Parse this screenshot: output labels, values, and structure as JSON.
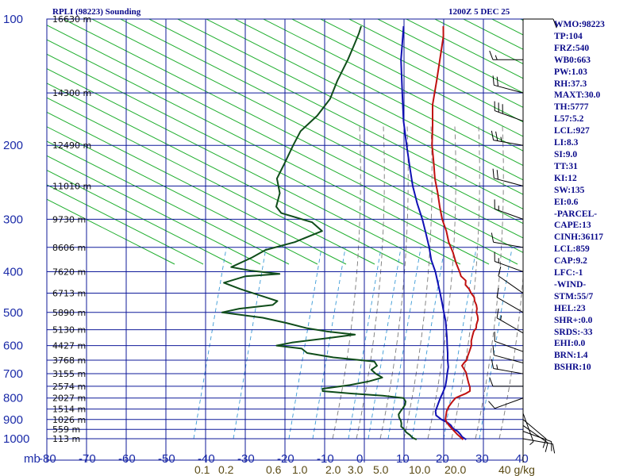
{
  "header": {
    "title": "RPLI (98223) Sounding",
    "time": "1200Z  5 DEC 25"
  },
  "indices": [
    "WMO:98223",
    "TP:104",
    "FRZ:540",
    "WB0:663",
    "PW:1.03",
    "RH:37.3",
    "MAXT:30.0",
    "TH:5777",
    "L57:5.2",
    "LCL:927",
    "LI:8.3",
    "SI:9.0",
    "TT:31",
    "KI:12",
    "SW:135",
    "EI:0.6",
    "-PARCEL-",
    "CAPE:13",
    "CINH:36117",
    "LCL:859",
    "CAP:9.2",
    "LFC:-1",
    "-WIND-",
    "STM:55/7",
    "HEL:23",
    "SHR+:0.0",
    "SRDS:-33",
    "EHI:0.0",
    "BRN:1.4",
    "BSHR:10"
  ],
  "colors": {
    "grid": "#0f1a9a",
    "dry_adiabat": "#1fae2e",
    "moist_adiabat": "#7a7a7a",
    "mixing_ratio": "#3a9ad6",
    "temperature": "#c01010",
    "dewpoint": "#0f4d1a",
    "parcel": "#1010b4",
    "wind": "#000000"
  },
  "chart_data": {
    "type": "line",
    "title": "RPLI (98223) Sounding",
    "pressure_axis_label": "mb",
    "temperature_axis_label": "",
    "pressure_ticks": [
      "100",
      "200",
      "300",
      "400",
      "500",
      "600",
      "700",
      "800",
      "900",
      "1000"
    ],
    "temperature_ticks": [
      "-80",
      "-70",
      "-60",
      "-50",
      "-40",
      "-30",
      "-20",
      "-10",
      "0",
      "10",
      "20",
      "30",
      "40"
    ],
    "mixing_ratio_labels": [
      "0.1",
      "0.2",
      "0.6",
      "1.0",
      "2.0",
      "3.0",
      "5.0",
      "10.0",
      "20.0",
      "40 g/kg"
    ],
    "height_labels": [
      {
        "p": 100,
        "label": "16630 m"
      },
      {
        "p": 150,
        "label": "14300 m"
      },
      {
        "p": 200,
        "label": "12490 m"
      },
      {
        "p": 250,
        "label": "11010 m"
      },
      {
        "p": 300,
        "label": "9730 m"
      },
      {
        "p": 350,
        "label": "8606 m"
      },
      {
        "p": 400,
        "label": "7620 m"
      },
      {
        "p": 450,
        "label": "6713 m"
      },
      {
        "p": 500,
        "label": "5890 m"
      },
      {
        "p": 550,
        "label": "5130 m"
      },
      {
        "p": 600,
        "label": "4427 m"
      },
      {
        "p": 650,
        "label": "3768 m"
      },
      {
        "p": 700,
        "label": "3155 m"
      },
      {
        "p": 750,
        "label": "2574 m"
      },
      {
        "p": 800,
        "label": "2027 m"
      },
      {
        "p": 850,
        "label": "1514 m"
      },
      {
        "p": 900,
        "label": "1026 m"
      },
      {
        "p": 950,
        "label": "559 m"
      },
      {
        "p": 1000,
        "label": "113 m"
      }
    ],
    "p_range": [
      100,
      1000
    ],
    "t_range_at_surface": [
      -80,
      40
    ],
    "skew": "45-degree skew-T log-p",
    "temperature_profile": [
      [
        1005,
        25.1
      ],
      [
        990,
        23.7
      ],
      [
        975,
        22.2
      ],
      [
        960,
        20.8
      ],
      [
        945,
        19.4
      ],
      [
        930,
        18.0
      ],
      [
        915,
        16.7
      ],
      [
        900,
        15.6
      ],
      [
        880,
        14.7
      ],
      [
        860,
        13.8
      ],
      [
        840,
        13.2
      ],
      [
        820,
        12.9
      ],
      [
        800,
        12.7
      ],
      [
        790,
        13.4
      ],
      [
        780,
        14.2
      ],
      [
        770,
        14.6
      ],
      [
        755,
        13.7
      ],
      [
        735,
        12.1
      ],
      [
        715,
        10.5
      ],
      [
        695,
        8.9
      ],
      [
        680,
        7.3
      ],
      [
        670,
        6.2
      ],
      [
        660,
        6.0
      ],
      [
        650,
        6.0
      ],
      [
        635,
        5.2
      ],
      [
        620,
        4.5
      ],
      [
        600,
        3.5
      ],
      [
        585,
        2.3
      ],
      [
        570,
        1.4
      ],
      [
        555,
        0.5
      ],
      [
        545,
        0.3
      ],
      [
        535,
        -0.5
      ],
      [
        520,
        -1.4
      ],
      [
        510,
        -2.4
      ],
      [
        500,
        -3.6
      ],
      [
        490,
        -4.4
      ],
      [
        480,
        -5.5
      ],
      [
        470,
        -6.9
      ],
      [
        460,
        -8.0
      ],
      [
        450,
        -9.8
      ],
      [
        440,
        -11.3
      ],
      [
        430,
        -13.3
      ],
      [
        420,
        -14.3
      ],
      [
        410,
        -16.6
      ],
      [
        400,
        -18.1
      ],
      [
        380,
        -21.4
      ],
      [
        360,
        -24.6
      ],
      [
        340,
        -28.3
      ],
      [
        320,
        -31.7
      ],
      [
        300,
        -35.7
      ],
      [
        280,
        -39.5
      ],
      [
        260,
        -43.4
      ],
      [
        240,
        -47.8
      ],
      [
        220,
        -52.1
      ],
      [
        200,
        -56.9
      ],
      [
        180,
        -61.6
      ],
      [
        160,
        -67.0
      ],
      [
        140,
        -72.1
      ],
      [
        120,
        -78.1
      ],
      [
        110,
        -81.5
      ],
      [
        104,
        -84.1
      ]
    ],
    "dewpoint_profile": [
      [
        1005,
        13.4
      ],
      [
        995,
        11.9
      ],
      [
        980,
        10.6
      ],
      [
        965,
        8.9
      ],
      [
        950,
        7.7
      ],
      [
        935,
        6.2
      ],
      [
        920,
        5.5
      ],
      [
        905,
        4.6
      ],
      [
        890,
        3.4
      ],
      [
        875,
        2.5
      ],
      [
        860,
        2.2
      ],
      [
        845,
        2.0
      ],
      [
        830,
        1.7
      ],
      [
        815,
        1.0
      ],
      [
        800,
        -0.4
      ],
      [
        790,
        -6.2
      ],
      [
        780,
        -15.1
      ],
      [
        770,
        -22.5
      ],
      [
        760,
        -23.1
      ],
      [
        745,
        -17.2
      ],
      [
        730,
        -13.3
      ],
      [
        715,
        -10.9
      ],
      [
        700,
        -13.5
      ],
      [
        685,
        -15.6
      ],
      [
        670,
        -15.2
      ],
      [
        655,
        -16.9
      ],
      [
        640,
        -28.3
      ],
      [
        625,
        -36.0
      ],
      [
        610,
        -38.5
      ],
      [
        600,
        -45.6
      ],
      [
        590,
        -42.5
      ],
      [
        575,
        -34.1
      ],
      [
        565,
        -28.6
      ],
      [
        555,
        -36.6
      ],
      [
        545,
        -42.4
      ],
      [
        530,
        -48.8
      ],
      [
        515,
        -56.1
      ],
      [
        500,
        -67.7
      ],
      [
        490,
        -64.3
      ],
      [
        480,
        -56.8
      ],
      [
        470,
        -56.6
      ],
      [
        460,
        -60.6
      ],
      [
        440,
        -68.9
      ],
      [
        425,
        -74.7
      ],
      [
        410,
        -70.9
      ],
      [
        405,
        -62.9
      ],
      [
        398,
        -70.8
      ],
      [
        390,
        -76.8
      ],
      [
        370,
        -74.0
      ],
      [
        355,
        -72.5
      ],
      [
        340,
        -67.1
      ],
      [
        320,
        -63.0
      ],
      [
        305,
        -67.7
      ],
      [
        290,
        -77.8
      ],
      [
        280,
        -80.7
      ],
      [
        260,
        -83.2
      ],
      [
        240,
        -87.6
      ],
      [
        220,
        -89.6
      ],
      [
        200,
        -91.9
      ],
      [
        185,
        -93.6
      ],
      [
        170,
        -93.3
      ],
      [
        155,
        -94.3
      ],
      [
        140,
        -97.1
      ],
      [
        125,
        -99.7
      ],
      [
        115,
        -101.9
      ],
      [
        108,
        -103.6
      ],
      [
        104,
        -104.8
      ]
    ],
    "parcel_profile": [
      [
        1005,
        25.9
      ],
      [
        990,
        24.2
      ],
      [
        975,
        23.0
      ],
      [
        960,
        21.6
      ],
      [
        945,
        19.7
      ],
      [
        930,
        18.5
      ],
      [
        915,
        16.9
      ],
      [
        900,
        14.6
      ],
      [
        880,
        12.2
      ],
      [
        860,
        11.0
      ],
      [
        840,
        10.3
      ],
      [
        820,
        9.6
      ],
      [
        800,
        8.9
      ],
      [
        775,
        8.1
      ],
      [
        750,
        7.2
      ],
      [
        725,
        5.9
      ],
      [
        700,
        4.5
      ],
      [
        675,
        3.1
      ],
      [
        650,
        1.2
      ],
      [
        625,
        -0.6
      ],
      [
        600,
        -2.6
      ],
      [
        575,
        -4.6
      ],
      [
        550,
        -6.8
      ],
      [
        525,
        -9.1
      ],
      [
        500,
        -11.8
      ],
      [
        475,
        -14.6
      ],
      [
        450,
        -17.6
      ],
      [
        425,
        -20.8
      ],
      [
        400,
        -24.2
      ],
      [
        375,
        -28.2
      ],
      [
        350,
        -31.9
      ],
      [
        325,
        -36.1
      ],
      [
        300,
        -40.7
      ],
      [
        275,
        -46.0
      ],
      [
        250,
        -51.5
      ],
      [
        225,
        -57.1
      ],
      [
        200,
        -63.3
      ],
      [
        175,
        -70.2
      ],
      [
        150,
        -77.6
      ],
      [
        125,
        -86.3
      ],
      [
        104,
        -94.1
      ]
    ],
    "wind_barbs": [
      {
        "p": 1000,
        "dir": 100,
        "spd": 10
      },
      {
        "p": 960,
        "dir": 110,
        "spd": 10
      },
      {
        "p": 930,
        "dir": 125,
        "spd": 10
      },
      {
        "p": 900,
        "dir": 130,
        "spd": 10
      },
      {
        "p": 870,
        "dir": 160,
        "spd": 5
      },
      {
        "p": 800,
        "dir": 250,
        "spd": 10
      },
      {
        "p": 750,
        "dir": 270,
        "spd": 10
      },
      {
        "p": 700,
        "dir": 280,
        "spd": 15
      },
      {
        "p": 660,
        "dir": 285,
        "spd": 10
      },
      {
        "p": 620,
        "dir": 290,
        "spd": 10
      },
      {
        "p": 560,
        "dir": 300,
        "spd": 15
      },
      {
        "p": 500,
        "dir": 300,
        "spd": 10
      },
      {
        "p": 450,
        "dir": 305,
        "spd": 10
      },
      {
        "p": 400,
        "dir": 290,
        "spd": 15
      },
      {
        "p": 350,
        "dir": 280,
        "spd": 10
      },
      {
        "p": 300,
        "dir": 290,
        "spd": 15
      },
      {
        "p": 250,
        "dir": 285,
        "spd": 20
      },
      {
        "p": 200,
        "dir": 280,
        "spd": 25
      },
      {
        "p": 175,
        "dir": 290,
        "spd": 30
      },
      {
        "p": 150,
        "dir": 285,
        "spd": 20
      },
      {
        "p": 125,
        "dir": 270,
        "spd": 15
      },
      {
        "p": 100,
        "dir": 90,
        "spd": 10
      }
    ]
  }
}
